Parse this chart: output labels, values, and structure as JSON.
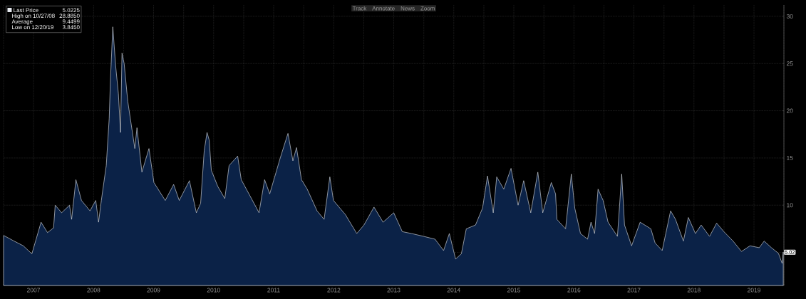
{
  "chart_data": {
    "type": "area",
    "annotations": [
      "5.0225",
      "High on 10/27/08",
      "28.8850",
      "Average",
      "9.4499",
      "Low on 12/20/19",
      "3.8450",
      "Track",
      "Annotate",
      "News",
      "Zoom",
      {
        "text": "5.02",
        "x": "2019-12-31",
        "y": 5.0225
      }
    ],
    "x": [
      "2007-01-01",
      "2007-03-06",
      "2007-05-01",
      "2007-06-22",
      "2007-08-17",
      "2007-09-25",
      "2007-11-01",
      "2007-11-11",
      "2007-12-20",
      "2008-02-06",
      "2008-02-19",
      "2008-03-16",
      "2008-04-19",
      "2008-06-10",
      "2008-07-15",
      "2008-08-01",
      "2008-08-18",
      "2008-09-17",
      "2008-10-05",
      "2008-10-13",
      "2008-10-27",
      "2008-11-13",
      "2008-11-30",
      "2008-12-13",
      "2008-12-22",
      "2009-01-04",
      "2009-01-26",
      "2009-03-10",
      "2009-03-23",
      "2009-04-22",
      "2009-06-04",
      "2009-07-04",
      "2009-09-11",
      "2009-11-01",
      "2009-12-05",
      "2010-02-05",
      "2010-03-19",
      "2010-04-14",
      "2010-05-06",
      "2010-05-23",
      "2010-06-05",
      "2010-06-18",
      "2010-07-27",
      "2010-09-08",
      "2010-10-04",
      "2010-11-25",
      "2010-12-17",
      "2011-02-11",
      "2011-04-04",
      "2011-05-08",
      "2011-06-08",
      "2011-08-11",
      "2011-09-27",
      "2011-10-27",
      "2011-11-18",
      "2011-12-18",
      "2012-01-22",
      "2012-03-22",
      "2012-05-04",
      "2012-06-08",
      "2012-06-30",
      "2012-09-11",
      "2012-11-19",
      "2013-01-02",
      "2013-03-04",
      "2013-04-28",
      "2013-07-02",
      "2013-08-23",
      "2013-10-18",
      "2013-12-31",
      "2014-03-10",
      "2014-05-01",
      "2014-06-05",
      "2014-07-13",
      "2014-08-17",
      "2014-09-16",
      "2014-11-11",
      "2014-12-24",
      "2015-01-23",
      "2015-02-27",
      "2015-03-20",
      "2015-05-02",
      "2015-06-15",
      "2015-07-28",
      "2015-08-31",
      "2015-10-13",
      "2015-11-25",
      "2015-12-25",
      "2016-02-15",
      "2016-03-12",
      "2016-03-20",
      "2016-05-12",
      "2016-06-16",
      "2016-07-07",
      "2016-08-11",
      "2016-09-23",
      "2016-10-14",
      "2016-11-05",
      "2016-11-26",
      "2016-12-27",
      "2017-01-26",
      "2017-03-24",
      "2017-04-19",
      "2017-05-06",
      "2017-06-18",
      "2017-08-09",
      "2017-10-13",
      "2017-11-08",
      "2017-12-21",
      "2018-02-10",
      "2018-03-12",
      "2018-04-29",
      "2018-05-29",
      "2018-07-11",
      "2018-08-15",
      "2018-10-05",
      "2018-11-17",
      "2018-12-31",
      "2019-02-25",
      "2019-04-17",
      "2019-06-08",
      "2019-08-03",
      "2019-09-02",
      "2019-10-16",
      "2019-11-28",
      "2019-12-20",
      "2019-12-27"
    ],
    "series": [
      {
        "name": "Last Price",
        "color": "#e6e9ef",
        "values": [
          6.8,
          6.2,
          5.7,
          4.85,
          8.2,
          7.1,
          7.6,
          10.0,
          9.2,
          10.0,
          8.5,
          12.7,
          10.5,
          9.4,
          10.5,
          8.2,
          10.5,
          14.2,
          19.2,
          23.5,
          28.885,
          24.8,
          21.8,
          17.7,
          26.1,
          25.0,
          21.0,
          16.0,
          18.2,
          13.5,
          16.0,
          12.4,
          10.5,
          12.2,
          10.5,
          12.6,
          9.2,
          10.2,
          15.8,
          17.7,
          16.9,
          13.7,
          12.0,
          10.7,
          14.2,
          15.2,
          12.7,
          10.9,
          9.2,
          12.7,
          11.2,
          15.0,
          17.6,
          14.7,
          16.1,
          12.7,
          11.7,
          9.4,
          8.5,
          13.0,
          10.5,
          9.0,
          7.0,
          7.9,
          9.8,
          8.2,
          9.2,
          7.2,
          7.0,
          6.7,
          6.4,
          5.2,
          7.0,
          4.3,
          4.85,
          7.5,
          7.9,
          9.7,
          13.1,
          9.2,
          13.0,
          11.7,
          13.9,
          10.0,
          12.6,
          9.2,
          13.5,
          9.2,
          12.4,
          11.2,
          8.5,
          7.5,
          13.3,
          9.7,
          7.0,
          6.4,
          8.2,
          7.0,
          11.7,
          10.5,
          8.2,
          6.7,
          13.3,
          7.9,
          5.7,
          8.2,
          7.5,
          6.0,
          5.2,
          9.4,
          8.5,
          6.2,
          8.7,
          7.0,
          7.9,
          6.7,
          8.1,
          7.2,
          6.2,
          5.1,
          5.7,
          5.5,
          6.2,
          5.5,
          4.9,
          3.845,
          5.0225
        ]
      }
    ],
    "xlim": [
      "2007-01-01",
      "2019-12-31"
    ],
    "xticks": [
      {
        "value": "2007-01-01",
        "label": null
      },
      {
        "value": "2007-07-02",
        "label": "2007"
      },
      {
        "value": "2008-01-01",
        "label": null
      },
      {
        "value": "2008-07-02",
        "label": "2008"
      },
      {
        "value": "2009-01-01",
        "label": null
      },
      {
        "value": "2009-07-02",
        "label": "2009"
      },
      {
        "value": "2010-01-01",
        "label": null
      },
      {
        "value": "2010-07-02",
        "label": "2010"
      },
      {
        "value": "2011-01-01",
        "label": null
      },
      {
        "value": "2011-07-02",
        "label": "2011"
      },
      {
        "value": "2012-01-01",
        "label": null
      },
      {
        "value": "2012-07-02",
        "label": "2012"
      },
      {
        "value": "2013-01-01",
        "label": null
      },
      {
        "value": "2013-07-02",
        "label": "2013"
      },
      {
        "value": "2014-01-01",
        "label": null
      },
      {
        "value": "2014-07-02",
        "label": "2014"
      },
      {
        "value": "2015-01-01",
        "label": null
      },
      {
        "value": "2015-07-02",
        "label": "2015"
      },
      {
        "value": "2016-01-01",
        "label": null
      },
      {
        "value": "2016-07-02",
        "label": "2016"
      },
      {
        "value": "2017-01-01",
        "label": null
      },
      {
        "value": "2017-07-02",
        "label": "2017"
      },
      {
        "value": "2018-01-01",
        "label": null
      },
      {
        "value": "2018-07-02",
        "label": "2018"
      },
      {
        "value": "2019-01-01",
        "label": null
      },
      {
        "value": "2019-07-02",
        "label": "2019"
      },
      {
        "value": "2019-12-31",
        "label": null
      }
    ],
    "ylim": [
      1.5,
      31.2
    ],
    "yticks": [
      5,
      10,
      15,
      20,
      25,
      30
    ],
    "grid": true,
    "legend": "top left"
  }
}
